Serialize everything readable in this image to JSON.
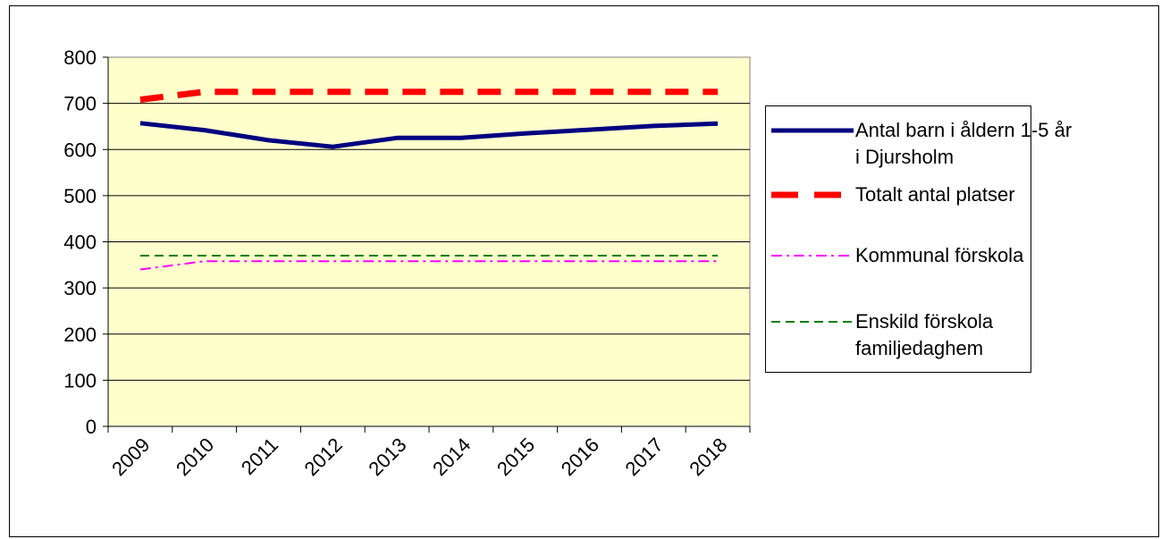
{
  "chart_data": {
    "type": "line",
    "title": "",
    "xlabel": "",
    "ylabel": "",
    "ylim": [
      0,
      800
    ],
    "yticks": [
      "0",
      "100",
      "200",
      "300",
      "400",
      "500",
      "600",
      "700",
      "800"
    ],
    "categories": [
      "2009",
      "2010",
      "2011",
      "2012",
      "2013",
      "2014",
      "2015",
      "2016",
      "2017",
      "2018"
    ],
    "grid": "horizontal",
    "plot_background": "#FFFFCC",
    "legend_position": "right",
    "series": [
      {
        "name": "Antal barn i åldern 1-5 år i Djursholm",
        "name_lines": [
          "Antal barn i åldern 1-5 år",
          "i Djursholm"
        ],
        "color": "#000080",
        "style": "solid",
        "values": [
          657,
          642,
          620,
          606,
          625,
          625,
          635,
          643,
          651,
          656
        ]
      },
      {
        "name": "Totalt antal platser",
        "name_lines": [
          "Totalt antal platser"
        ],
        "color": "#FF0000",
        "style": "dashed",
        "values": [
          708,
          725,
          725,
          725,
          725,
          725,
          725,
          725,
          725,
          725
        ]
      },
      {
        "name": "Kommunal förskola",
        "name_lines": [
          "Kommunal förskola"
        ],
        "color": "#FF00FF",
        "style": "dashdot",
        "values": [
          340,
          358,
          358,
          358,
          358,
          358,
          358,
          358,
          358,
          358
        ]
      },
      {
        "name": "Enskild förskola familjedaghem",
        "name_lines": [
          "Enskild förskola",
          "familjedaghem"
        ],
        "color": "#008000",
        "style": "dashed",
        "values": [
          370,
          370,
          370,
          370,
          370,
          370,
          370,
          370,
          370,
          370
        ]
      }
    ]
  }
}
